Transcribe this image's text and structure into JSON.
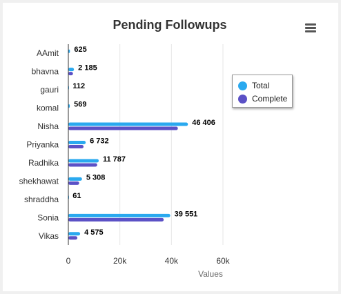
{
  "chart_data": {
    "type": "bar",
    "orientation": "horizontal",
    "title": "Pending Followups",
    "xlabel": "Values",
    "categories": [
      "AAmit",
      "bhavna",
      "gauri",
      "komal",
      "Nisha",
      "Priyanka",
      "Radhika",
      "shekhawat",
      "shraddha",
      "Sonia",
      "Vikas"
    ],
    "series": [
      {
        "name": "Total",
        "color": "#2aa9ef",
        "values": [
          625,
          2185,
          112,
          569,
          46406,
          6732,
          11787,
          5308,
          61,
          39551,
          4575
        ]
      },
      {
        "name": "Complete",
        "color": "#5b51c6",
        "values": [
          0,
          1800,
          0,
          0,
          42500,
          5900,
          11200,
          4200,
          0,
          37000,
          3500
        ]
      }
    ],
    "data_labels": [
      "625",
      "2 185",
      "112",
      "569",
      "46 406",
      "6 732",
      "11 787",
      "5 308",
      "61",
      "39 551",
      "4 575"
    ],
    "xlim": [
      0,
      60000
    ],
    "xticks": [
      0,
      20000,
      40000,
      60000
    ],
    "xtick_labels": [
      "0",
      "20k",
      "40k",
      "60k"
    ],
    "grid": true,
    "legend_position": "right"
  },
  "icons": {
    "menu": "hamburger-menu-icon"
  }
}
